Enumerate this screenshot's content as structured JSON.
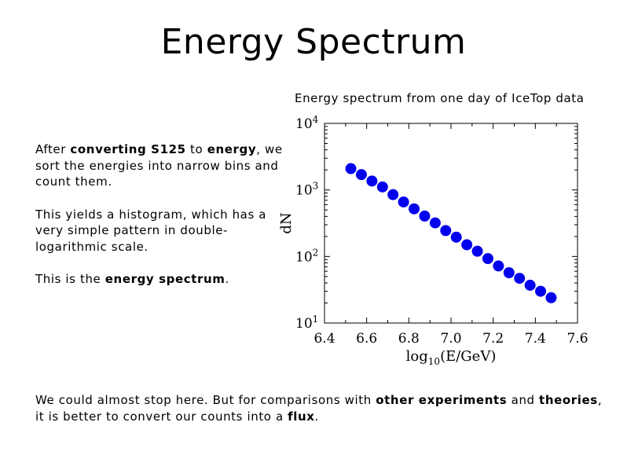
{
  "slide": {
    "title": "Energy Spectrum",
    "left_text": {
      "p1_a": "After ",
      "p1_b": "converting S125",
      "p1_c": " to ",
      "p1_d": "energy",
      "p1_e": ", we sort the energies into narrow bins and count them.",
      "p2": "This yields a histogram, which has a very simple pattern in double-logarithmic scale.",
      "p3_a": "This is the ",
      "p3_b": "energy spectrum",
      "p3_c": "."
    },
    "bottom_text": {
      "a": "We could almost stop here. But for comparisons with ",
      "b": "other experiments",
      "c": " and ",
      "d": "theories",
      "e": ",",
      "f": "it is better to convert our counts into a ",
      "g": "flux",
      "h": "."
    }
  },
  "chart_data": {
    "type": "scatter",
    "title": "Energy spectrum from one day of IceTop data",
    "xlabel": "log10(E/GeV)",
    "ylabel": "dN",
    "xlim": [
      6.4,
      7.6
    ],
    "ylim": [
      10,
      10000
    ],
    "yscale": "log",
    "xticks": [
      "6.4",
      "6.6",
      "6.8",
      "7.0",
      "7.2",
      "7.4",
      "7.6"
    ],
    "yticks": [
      "10^1",
      "10^2",
      "10^3",
      "10^4"
    ],
    "marker_color": "#0000ee",
    "series": [
      {
        "x": [
          6.525,
          6.575,
          6.625,
          6.675,
          6.725,
          6.775,
          6.825,
          6.875,
          6.925,
          6.975,
          7.025,
          7.075,
          7.125,
          7.175,
          7.225,
          7.275,
          7.325,
          7.375,
          7.425,
          7.475
        ],
        "y": [
          2090,
          1700,
          1360,
          1110,
          850,
          660,
          520,
          405,
          320,
          245,
          195,
          150,
          120,
          93,
          72,
          57,
          47,
          37,
          30,
          24
        ]
      }
    ]
  }
}
